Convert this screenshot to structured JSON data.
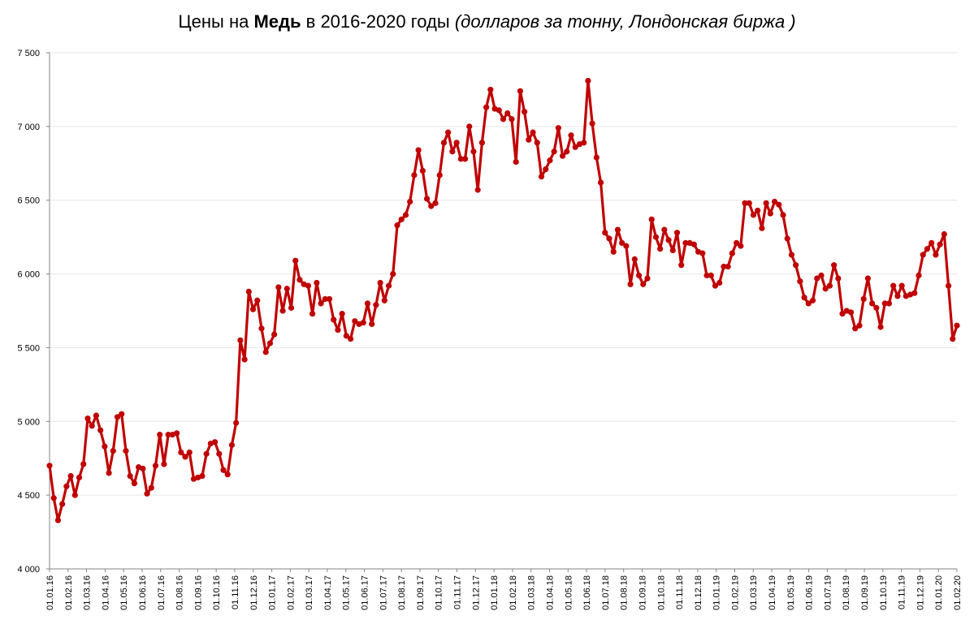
{
  "title": {
    "prefix": "Цены на ",
    "bold": "Медь",
    "middle": " в 2016-2020 годы ",
    "italic": "(долларов за тонну, Лондонская биржа )"
  },
  "colors": {
    "line": "#c00000",
    "grid": "#e6e6e6",
    "axis": "#868686"
  },
  "chart_data": {
    "type": "line",
    "title": "Цены на Медь в 2016-2020 годы (долларов за тонну, Лондонская биржа )",
    "xlabel": "",
    "ylabel": "",
    "ylim": [
      4000,
      7500
    ],
    "grid": true,
    "legend": "none",
    "y_ticks": [
      "4 000",
      "4 500",
      "5 000",
      "5 500",
      "6 000",
      "6 500",
      "7 000",
      "7 500"
    ],
    "x_ticks": [
      "01.01.16",
      "01.02.16",
      "01.03.16",
      "01.04.16",
      "01.05.16",
      "01.06.16",
      "01.07.16",
      "01.08.16",
      "01.09.16",
      "01.10.16",
      "01.11.16",
      "01.12.16",
      "01.01.17",
      "01.02.17",
      "01.03.17",
      "01.04.17",
      "01.05.17",
      "01.06.17",
      "01.07.17",
      "01.08.17",
      "01.09.17",
      "01.10.17",
      "01.11.17",
      "01.12.17",
      "01.01.18",
      "01.02.18",
      "01.03.18",
      "01.04.18",
      "01.05.18",
      "01.06.18",
      "01.07.18",
      "01.08.18",
      "01.09.18",
      "01.10.18",
      "01.11.18",
      "01.12.18",
      "01.01.19",
      "01.02.19",
      "01.03.19",
      "01.04.19",
      "01.05.19",
      "01.06.19",
      "01.07.19",
      "01.08.19",
      "01.09.19",
      "01.10.19",
      "01.11.19",
      "01.12.19",
      "01.01.20",
      "01.02.20"
    ],
    "series": [
      {
        "values": [
          4700,
          4480,
          4330,
          4440,
          4560,
          4630,
          4500,
          4620,
          4710,
          5020,
          4970,
          5040,
          4940,
          4830,
          4650,
          4800,
          5030,
          5050,
          4800,
          4630,
          4580,
          4690,
          4680,
          4510,
          4550,
          4700,
          4910,
          4710,
          4910,
          4910,
          4920,
          4790,
          4760,
          4790,
          4610,
          4620,
          4630,
          4780,
          4850,
          4860,
          4780,
          4670,
          4640,
          4840,
          4990,
          5550,
          5420,
          5880,
          5760,
          5820,
          5630,
          5470,
          5530,
          5590,
          5910,
          5750,
          5900,
          5770,
          6090,
          5960,
          5930,
          5920,
          5730,
          5940,
          5800,
          5830,
          5830,
          5690,
          5620,
          5730,
          5580,
          5560,
          5680,
          5660,
          5670,
          5800,
          5660,
          5790,
          5940,
          5820,
          5920,
          6000,
          6330,
          6370,
          6400,
          6490,
          6670,
          6840,
          6700,
          6510,
          6460,
          6480,
          6670,
          6890,
          6960,
          6830,
          6890,
          6780,
          6780,
          7000,
          6830,
          6570,
          6890,
          7130,
          7250,
          7120,
          7110,
          7050,
          7090,
          7050,
          6760,
          7240,
          7100,
          6910,
          6960,
          6890,
          6660,
          6710,
          6770,
          6830,
          6990,
          6800,
          6830,
          6940,
          6860,
          6880,
          6890,
          7310,
          7020,
          6790,
          6620,
          6280,
          6240,
          6150,
          6300,
          6210,
          6190,
          5930,
          6100,
          5990,
          5930,
          5970,
          6370,
          6250,
          6170,
          6300,
          6230,
          6160,
          6280,
          6060,
          6210,
          6210,
          6200,
          6150,
          6140,
          5990,
          5990,
          5920,
          5940,
          6050,
          6050,
          6140,
          6210,
          6190,
          6480,
          6480,
          6400,
          6430,
          6310,
          6480,
          6410,
          6490,
          6470,
          6400,
          6240,
          6130,
          6060,
          5950,
          5840,
          5800,
          5820,
          5970,
          5990,
          5900,
          5920,
          6060,
          5970,
          5730,
          5750,
          5740,
          5630,
          5650,
          5830,
          5970,
          5800,
          5770,
          5640,
          5800,
          5800,
          5920,
          5850,
          5920,
          5850,
          5860,
          5870,
          5990,
          6130,
          6170,
          6210,
          6130,
          6200,
          6270,
          5920,
          5560,
          5650
        ]
      }
    ]
  }
}
